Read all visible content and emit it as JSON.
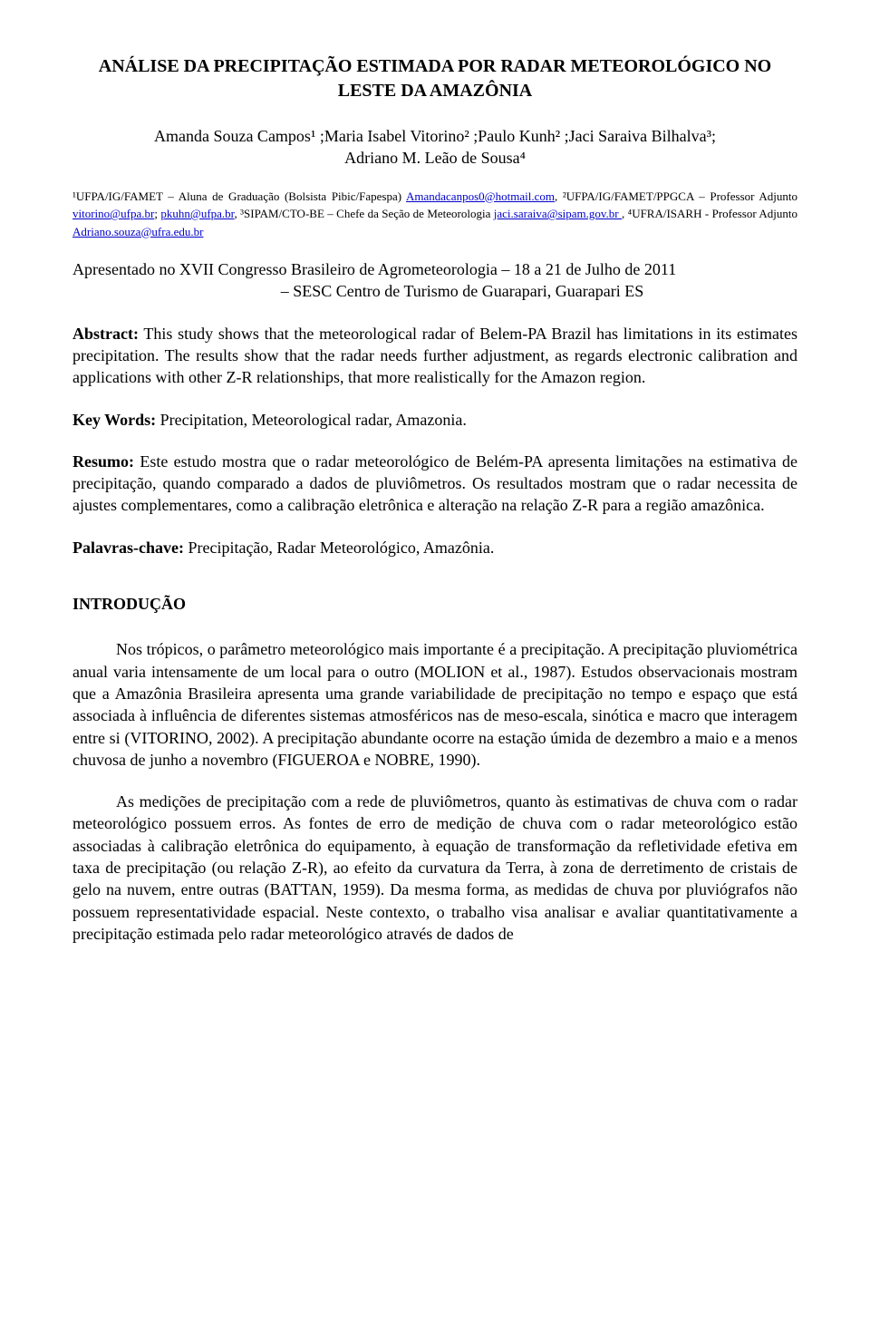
{
  "title": "ANÁLISE DA PRECIPITAÇÃO ESTIMADA POR RADAR METEOROLÓGICO NO LESTE DA AMAZÔNIA",
  "authors_line1": "Amanda Souza Campos¹ ;Maria Isabel Vitorino² ;Paulo Kunh² ;Jaci Saraiva Bilhalva³;",
  "authors_line2": "Adriano M. Leão de Sousa⁴",
  "aff1_prefix": "¹UFPA/IG/FAMET – Aluna de Graduação (Bolsista Pibic/Fapespa) ",
  "aff1_link": "Amandacanpos0@hotmail.com",
  "aff2_prefix": ", ²UFPA/IG/FAMET/PPGCA – Professor Adjunto ",
  "aff2_link": "vitorino@ufpa.br",
  "aff2_sep": "; ",
  "aff2_link2": "pkuhn@ufpa.br",
  "aff3_prefix": ", ³SIPAM/CTO-BE – Chefe da Seção de Meteorologia ",
  "aff3_link": "jaci.saraiva@sipam.gov.br ",
  "aff4_prefix": ", ⁴UFRA/ISARH - Professor Adjunto ",
  "aff4_link": "Adriano.souza@ufra.edu.br",
  "congress_l1": "Apresentado no XVII Congresso Brasileiro de Agrometeorologia – 18 a 21 de Julho de 2011",
  "congress_l2": "– SESC Centro de Turismo de Guarapari, Guarapari ES",
  "abstract_label": "Abstract:",
  "abstract_text": " This study shows that the meteorological radar of Belem-PA Brazil has limitations in its estimates precipitation. The results show that the radar needs further adjustment, as regards electronic calibration  and applications with other Z-R relationships, that more realistically for the Amazon region.",
  "keywords_label": "Key Words:",
  "keywords_text": " Precipitation, Meteorological radar, Amazonia.",
  "resumo_label": "Resumo:",
  "resumo_text": " Este estudo mostra que o radar meteorológico de Belém-PA apresenta limitações na estimativa de precipitação, quando comparado a dados de pluviômetros. Os resultados mostram que o radar necessita de ajustes complementares, como a calibração eletrônica e alteração na relação Z-R para a região amazônica.",
  "palavras_label": "Palavras-chave:",
  "palavras_text": " Precipitação, Radar Meteorológico, Amazônia.",
  "intro_head": "INTRODUÇÃO",
  "intro_p1": "Nos trópicos, o parâmetro meteorológico mais importante é a precipitação. A precipitação pluviométrica anual varia intensamente de um local para o outro (MOLION et al., 1987). Estudos observacionais mostram que a Amazônia Brasileira apresenta uma grande variabilidade de precipitação no tempo e espaço que está associada à influência de diferentes sistemas atmosféricos nas de meso-escala, sinótica e macro que interagem entre si (VITORINO, 2002). A precipitação abundante ocorre na estação úmida de dezembro a maio e a menos chuvosa de junho a novembro (FIGUEROA e NOBRE, 1990).",
  "intro_p2": "As medições de precipitação com a rede de pluviômetros, quanto às estimativas de chuva com o radar meteorológico possuem erros. As fontes de erro de medição de chuva com o radar meteorológico estão associadas à calibração eletrônica do equipamento, à equação de transformação da refletividade efetiva em taxa de precipitação (ou relação Z-R), ao efeito da curvatura da Terra, à zona de derretimento de cristais de gelo na nuvem, entre outras (BATTAN, 1959). Da mesma forma, as medidas de chuva por pluviógrafos não possuem representatividade espacial. Neste contexto, o trabalho visa analisar e avaliar quantitativamente a precipitação estimada pelo radar meteorológico através de dados de"
}
